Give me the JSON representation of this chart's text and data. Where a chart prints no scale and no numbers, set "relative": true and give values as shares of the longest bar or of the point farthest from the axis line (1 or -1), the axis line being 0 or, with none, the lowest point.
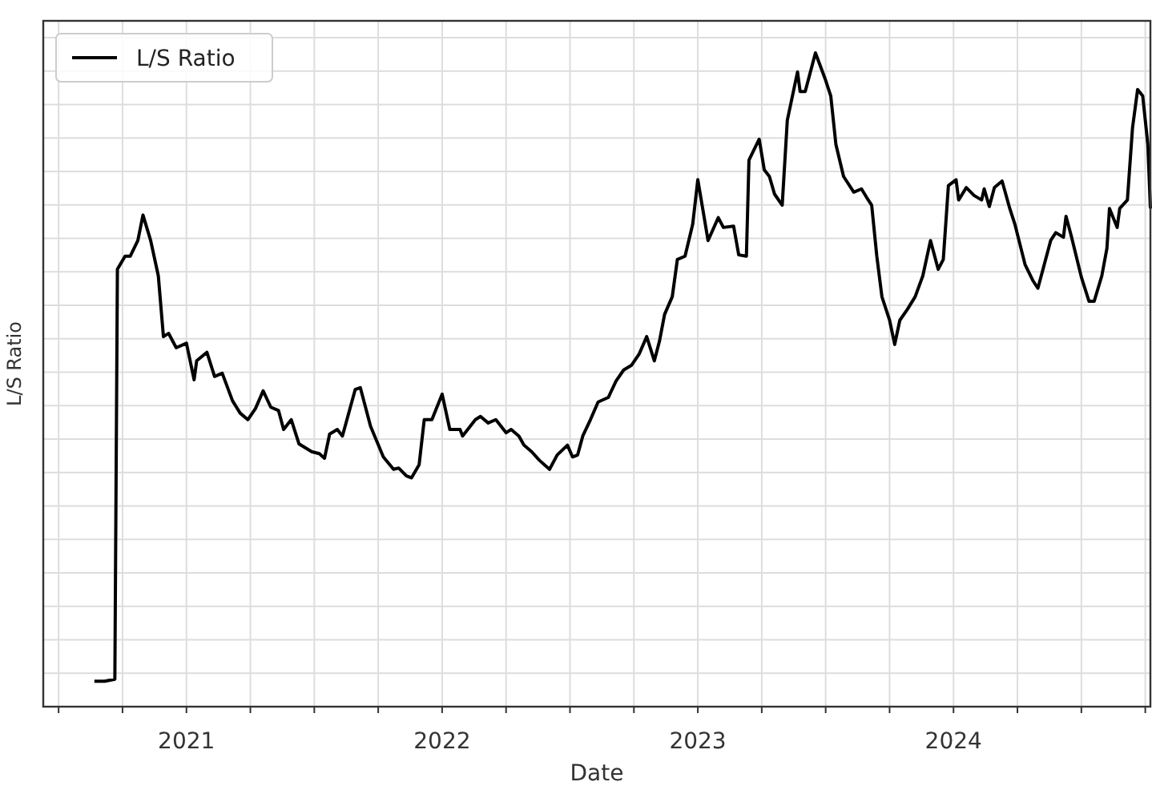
{
  "chart_data": {
    "type": "line",
    "xlabel": "Date",
    "ylabel": "L/S Ratio",
    "relative": true,
    "legend": "top left",
    "grid": true,
    "xlim": [
      2020.44,
      2024.77
    ],
    "xticks": [
      {
        "value": 2020.5,
        "label": null
      },
      {
        "value": 2020.75,
        "label": null
      },
      2021,
      {
        "value": 2021.25,
        "label": null
      },
      {
        "value": 2021.5,
        "label": null
      },
      {
        "value": 2021.75,
        "label": null
      },
      2022,
      {
        "value": 2022.25,
        "label": null
      },
      {
        "value": 2022.5,
        "label": null
      },
      {
        "value": 2022.75,
        "label": null
      },
      2023,
      {
        "value": 2023.25,
        "label": null
      },
      {
        "value": 2023.5,
        "label": null
      },
      {
        "value": 2023.75,
        "label": null
      },
      2024,
      {
        "value": 2024.25,
        "label": null
      },
      {
        "value": 2024.5,
        "label": null
      },
      {
        "value": 2024.75,
        "label": null
      }
    ],
    "series": [
      {
        "name": "L/S Ratio",
        "color": "#000000",
        "x": [
          2020.64,
          2020.68,
          2020.72,
          2020.73,
          2020.76,
          2020.78,
          2020.81,
          2020.83,
          2020.86,
          2020.89,
          2020.91,
          2020.93,
          2020.96,
          2021.0,
          2021.03,
          2021.04,
          2021.08,
          2021.11,
          2021.14,
          2021.18,
          2021.21,
          2021.24,
          2021.27,
          2021.3,
          2021.33,
          2021.36,
          2021.38,
          2021.41,
          2021.44,
          2021.49,
          2021.52,
          2021.54,
          2021.56,
          2021.59,
          2021.61,
          2021.66,
          2021.68,
          2021.72,
          2021.77,
          2021.81,
          2021.83,
          2021.86,
          2021.88,
          2021.91,
          2021.93,
          2021.96,
          2022.0,
          2022.03,
          2022.07,
          2022.08,
          2022.13,
          2022.15,
          2022.18,
          2022.21,
          2022.25,
          2022.27,
          2022.3,
          2022.32,
          2022.35,
          2022.38,
          2022.42,
          2022.45,
          2022.49,
          2022.51,
          2022.53,
          2022.55,
          2022.58,
          2022.61,
          2022.65,
          2022.68,
          2022.71,
          2022.74,
          2022.77,
          2022.8,
          2022.83,
          2022.85,
          2022.87,
          2022.9,
          2022.92,
          2022.95,
          2022.98,
          2023.0,
          2023.04,
          2023.08,
          2023.1,
          2023.14,
          2023.16,
          2023.19,
          2023.2,
          2023.24,
          2023.26,
          2023.28,
          2023.3,
          2023.33,
          2023.35,
          2023.39,
          2023.4,
          2023.42,
          2023.46,
          2023.5,
          2023.52,
          2023.54,
          2023.57,
          2023.61,
          2023.64,
          2023.66,
          2023.68,
          2023.7,
          2023.72,
          2023.75,
          2023.77,
          2023.79,
          2023.82,
          2023.85,
          2023.88,
          2023.91,
          2023.94,
          2023.96,
          2023.98,
          2024.01,
          2024.02,
          2024.05,
          2024.08,
          2024.11,
          2024.12,
          2024.14,
          2024.16,
          2024.19,
          2024.22,
          2024.24,
          2024.28,
          2024.31,
          2024.33,
          2024.35,
          2024.38,
          2024.4,
          2024.43,
          2024.44,
          2024.46,
          2024.5,
          2024.53,
          2024.55,
          2024.58,
          2024.6,
          2024.61,
          2024.64,
          2024.65,
          2024.68,
          2024.7,
          2024.72,
          2024.74,
          2024.76,
          2024.77
        ],
        "values": [
          0.039,
          0.039,
          0.042,
          0.669,
          0.689,
          0.689,
          0.713,
          0.752,
          0.713,
          0.659,
          0.566,
          0.571,
          0.549,
          0.556,
          0.5,
          0.529,
          0.542,
          0.505,
          0.51,
          0.468,
          0.449,
          0.439,
          0.456,
          0.483,
          0.458,
          0.453,
          0.424,
          0.439,
          0.402,
          0.39,
          0.387,
          0.38,
          0.417,
          0.424,
          0.414,
          0.485,
          0.488,
          0.429,
          0.382,
          0.363,
          0.365,
          0.353,
          0.35,
          0.37,
          0.439,
          0.439,
          0.478,
          0.424,
          0.424,
          0.414,
          0.439,
          0.444,
          0.434,
          0.439,
          0.419,
          0.424,
          0.414,
          0.4,
          0.39,
          0.377,
          0.363,
          0.385,
          0.4,
          0.382,
          0.385,
          0.414,
          0.439,
          0.466,
          0.473,
          0.498,
          0.515,
          0.522,
          0.539,
          0.566,
          0.529,
          0.559,
          0.6,
          0.627,
          0.684,
          0.689,
          0.738,
          0.806,
          0.713,
          0.748,
          0.733,
          0.735,
          0.691,
          0.689,
          0.836,
          0.868,
          0.821,
          0.811,
          0.784,
          0.767,
          0.897,
          0.971,
          0.941,
          0.941,
          1,
          0.958,
          0.934,
          0.86,
          0.811,
          0.787,
          0.792,
          0.779,
          0.767,
          0.689,
          0.627,
          0.591,
          0.554,
          0.591,
          0.608,
          0.627,
          0.659,
          0.713,
          0.669,
          0.684,
          0.797,
          0.806,
          0.775,
          0.794,
          0.782,
          0.775,
          0.792,
          0.765,
          0.794,
          0.804,
          0.762,
          0.738,
          0.676,
          0.652,
          0.64,
          0.669,
          0.713,
          0.725,
          0.718,
          0.75,
          0.721,
          0.657,
          0.62,
          0.62,
          0.659,
          0.701,
          0.762,
          0.733,
          0.762,
          0.775,
          0.885,
          0.944,
          0.934,
          0.86,
          0.762
        ]
      }
    ]
  }
}
